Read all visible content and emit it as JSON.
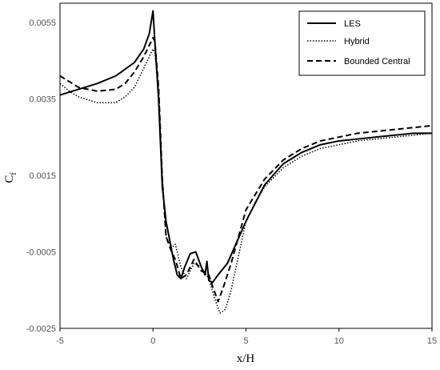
{
  "chart_data": {
    "type": "line",
    "xlabel": "x/H",
    "ylabel_main": "C",
    "ylabel_sub": "f",
    "xlim": [
      -5,
      15
    ],
    "ylim": [
      -0.0025,
      0.006
    ],
    "xticks": [
      -5,
      0,
      5,
      10,
      15
    ],
    "yticks": [
      -0.0025,
      -0.0005,
      0.0015,
      0.0035,
      0.0055
    ],
    "xtick_labels": [
      "-5",
      "0",
      "5",
      "10",
      "15"
    ],
    "ytick_labels": [
      "-0.0025",
      "-0.0005",
      "0.0015",
      "0.0035",
      "0.0055"
    ],
    "legend_position": "top-right",
    "series": [
      {
        "name": "LES",
        "style": "solid",
        "x": [
          -5,
          -4,
          -3,
          -2,
          -1,
          -0.5,
          -0.2,
          0,
          0.1,
          0.3,
          0.5,
          0.7,
          0.9,
          1.1,
          1.3,
          1.5,
          1.7,
          2.0,
          2.3,
          2.6,
          2.8,
          2.9,
          3.0,
          3.2,
          3.5,
          4.0,
          5.0,
          6.0,
          7.0,
          8.0,
          9.0,
          10.0,
          11.0,
          12.0,
          13.0,
          14.0,
          15.0
        ],
        "y": [
          0.0036,
          0.00375,
          0.0039,
          0.0041,
          0.00445,
          0.0048,
          0.0052,
          0.0058,
          0.005,
          0.0035,
          0.0012,
          0.0003,
          -0.0002,
          -0.0007,
          -0.0011,
          -0.0012,
          -0.0009,
          -0.00055,
          -0.0005,
          -0.0009,
          -0.0011,
          -0.00075,
          -0.00125,
          -0.0013,
          -0.0011,
          -0.0008,
          0.0003,
          0.00125,
          0.0018,
          0.0021,
          0.0023,
          0.0024,
          0.00245,
          0.0025,
          0.00255,
          0.0026,
          0.0026
        ]
      },
      {
        "name": "Hybrid",
        "style": "dotted",
        "x": [
          -5,
          -4.5,
          -4,
          -3,
          -2,
          -1.5,
          -1,
          -0.5,
          0,
          0.1,
          0.3,
          0.5,
          0.7,
          1.0,
          1.2,
          1.5,
          1.8,
          2.2,
          2.6,
          3.0,
          3.3,
          3.6,
          3.9,
          4.2,
          4.6,
          5.0,
          5.5,
          6.0,
          7.0,
          8.0,
          9.0,
          10.0,
          11.0,
          12.0,
          13.0,
          14.0,
          15.0
        ],
        "y": [
          0.0039,
          0.0037,
          0.00355,
          0.0034,
          0.0034,
          0.00355,
          0.0038,
          0.0043,
          0.0048,
          0.0047,
          0.0038,
          0.0015,
          -0.0001,
          -0.0004,
          -0.0003,
          -0.0009,
          -0.0012,
          -0.0008,
          -0.0009,
          -0.0012,
          -0.0017,
          -0.0021,
          -0.002,
          -0.0015,
          -0.0006,
          0.0003,
          0.0008,
          0.0012,
          0.0017,
          0.002,
          0.0022,
          0.0023,
          0.0024,
          0.00245,
          0.0025,
          0.00255,
          0.0026
        ]
      },
      {
        "name": "Bounded Central",
        "style": "dashed",
        "x": [
          -5,
          -4.5,
          -4,
          -3,
          -2,
          -1.5,
          -1,
          -0.5,
          0,
          0.1,
          0.3,
          0.5,
          0.7,
          1.0,
          1.2,
          1.5,
          1.8,
          2.2,
          2.6,
          3.0,
          3.2,
          3.5,
          3.8,
          4.2,
          4.6,
          5.0,
          5.5,
          6.0,
          7.0,
          8.0,
          9.0,
          10.0,
          11.0,
          12.0,
          13.0,
          14.0,
          15.0
        ],
        "y": [
          0.0041,
          0.00395,
          0.0038,
          0.0037,
          0.00375,
          0.0039,
          0.0042,
          0.0046,
          0.0051,
          0.005,
          0.0038,
          0.0014,
          -0.0001,
          -0.0005,
          -0.0007,
          -0.0012,
          -0.0011,
          -0.0007,
          -0.001,
          -0.0011,
          -0.0014,
          -0.0018,
          -0.0014,
          -0.0008,
          -0.0001,
          0.0006,
          0.001,
          0.0014,
          0.0019,
          0.0022,
          0.0024,
          0.0025,
          0.0026,
          0.00265,
          0.0027,
          0.00275,
          0.0028
        ]
      }
    ]
  }
}
